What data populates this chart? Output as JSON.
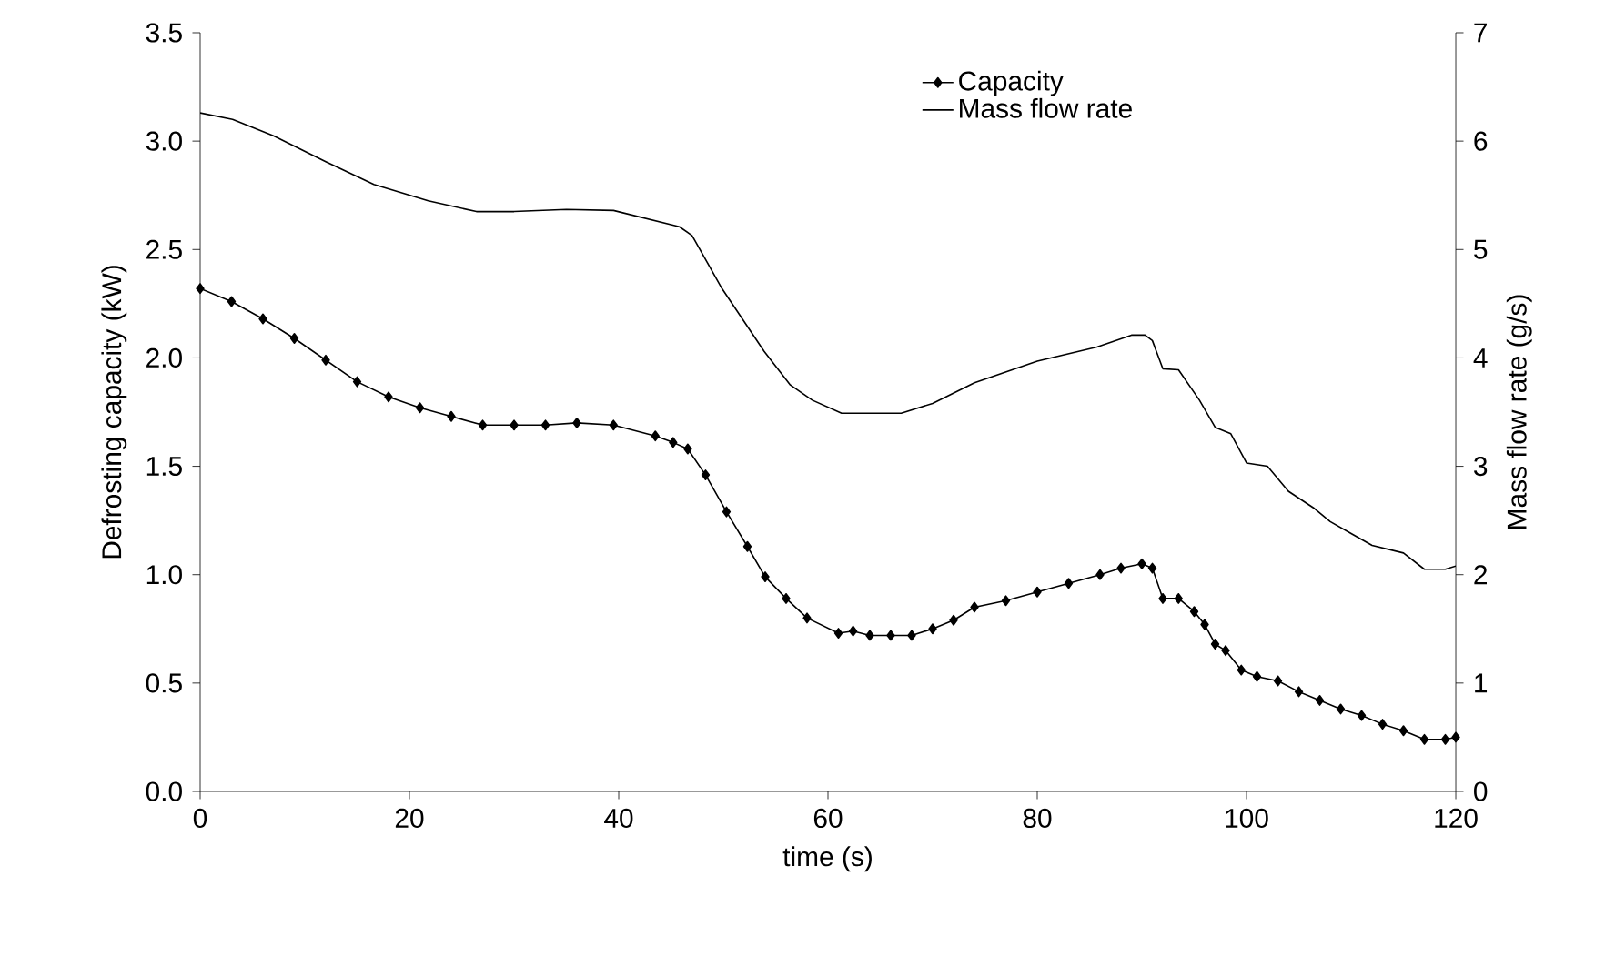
{
  "chart_data": {
    "type": "line",
    "xlabel": "time (s)",
    "ylabel": "Defrosting capacity (kW)",
    "y2label": "Mass flow rate (g/s)",
    "xlim": [
      0,
      120
    ],
    "xticks": [
      0,
      20,
      40,
      60,
      80,
      100,
      120
    ],
    "ylim": [
      0,
      3.5
    ],
    "yticks": [
      {
        "value": 0,
        "label": "0.0"
      },
      {
        "value": 0.5,
        "label": "0.5"
      },
      {
        "value": 1,
        "label": "1.0"
      },
      {
        "value": 1.5,
        "label": "1.5"
      },
      {
        "value": 2,
        "label": "2.0"
      },
      {
        "value": 2.5,
        "label": "2.5"
      },
      {
        "value": 3,
        "label": "3.0"
      },
      {
        "value": 3.5,
        "label": "3.5"
      }
    ],
    "y2lim": [
      0,
      7
    ],
    "y2ticks": [
      0,
      1,
      2,
      3,
      4,
      5,
      6,
      7
    ],
    "legend": "top right",
    "grid": false,
    "series": [
      {
        "name": "Capacity",
        "color": "#000000",
        "marker": "diamond",
        "x": [
          0,
          3,
          6,
          9,
          12,
          15,
          18,
          21,
          24,
          27,
          30,
          33,
          36,
          39.5,
          43.5,
          45.2,
          46.6,
          48.3,
          50.3,
          52.3,
          54,
          56,
          58,
          61,
          62.4,
          64,
          66,
          68,
          70,
          72,
          74,
          77,
          80,
          83,
          86,
          88,
          90,
          91,
          92,
          93.5,
          95,
          96,
          97,
          98,
          99.5,
          101,
          103,
          105,
          107,
          109,
          111,
          113,
          115,
          117,
          119,
          120
        ],
        "values": [
          2.32,
          2.26,
          2.18,
          2.09,
          1.99,
          1.89,
          1.82,
          1.77,
          1.73,
          1.69,
          1.69,
          1.69,
          1.7,
          1.69,
          1.64,
          1.61,
          1.58,
          1.46,
          1.29,
          1.13,
          0.99,
          0.89,
          0.8,
          0.73,
          0.74,
          0.72,
          0.72,
          0.72,
          0.75,
          0.79,
          0.85,
          0.88,
          0.92,
          0.96,
          1.0,
          1.03,
          1.05,
          1.03,
          0.89,
          0.89,
          0.83,
          0.77,
          0.68,
          0.65,
          0.56,
          0.53,
          0.51,
          0.46,
          0.42,
          0.38,
          0.35,
          0.31,
          0.28,
          0.24,
          0.24,
          0.25
        ]
      },
      {
        "name": "Mass flow rate",
        "color": "#000000",
        "marker": "none",
        "axis": "y2",
        "x": [
          0,
          3.1,
          7,
          12,
          16.6,
          21.8,
          26.4,
          30,
          35,
          39.5,
          45.8,
          47,
          49.8,
          53.9,
          56.4,
          58.5,
          61.3,
          64,
          67,
          70,
          74,
          80,
          85.7,
          89,
          90.3,
          91,
          92,
          93.5,
          95.5,
          97,
          98.5,
          100,
          102,
          104,
          106.5,
          108,
          110,
          112,
          115,
          117,
          119,
          120
        ],
        "values": [
          6.26,
          6.2,
          6.05,
          5.81,
          5.6,
          5.45,
          5.35,
          5.35,
          5.37,
          5.36,
          5.21,
          5.13,
          4.65,
          4.06,
          3.75,
          3.61,
          3.49,
          3.49,
          3.49,
          3.58,
          3.77,
          3.97,
          4.1,
          4.21,
          4.21,
          4.16,
          3.9,
          3.89,
          3.61,
          3.36,
          3.3,
          3.03,
          3.0,
          2.77,
          2.61,
          2.49,
          2.38,
          2.27,
          2.2,
          2.05,
          2.05,
          2.08
        ]
      }
    ]
  }
}
